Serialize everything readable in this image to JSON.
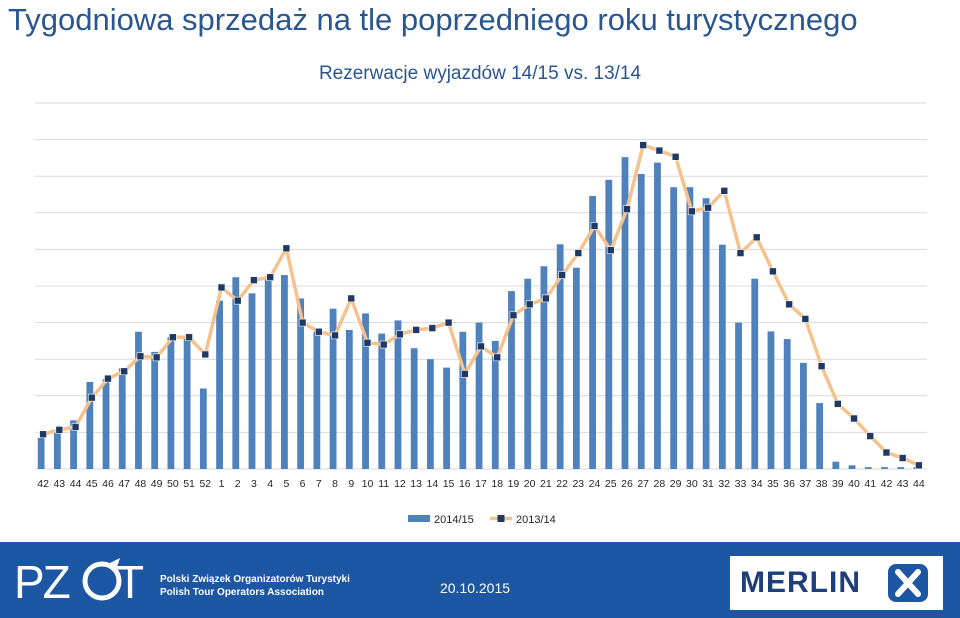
{
  "header": {
    "title": "Tygodniowa sprzedaż na tle poprzedniego roku turystycznego"
  },
  "chart_data": {
    "type": "bar",
    "title": "Rezerwacje wyjazdów 14/15 vs. 13/14",
    "xlabel": "",
    "ylabel": "",
    "grid": true,
    "legend_position": "bottom",
    "categories": [
      "42",
      "43",
      "44",
      "45",
      "46",
      "47",
      "48",
      "49",
      "50",
      "51",
      "52",
      "1",
      "2",
      "3",
      "4",
      "5",
      "6",
      "7",
      "8",
      "9",
      "10",
      "11",
      "12",
      "13",
      "14",
      "15",
      "16",
      "17",
      "18",
      "19",
      "20",
      "21",
      "22",
      "23",
      "24",
      "25",
      "26",
      "27",
      "28",
      "29",
      "30",
      "31",
      "32",
      "33",
      "34",
      "35",
      "36",
      "37",
      "38",
      "39",
      "40",
      "41",
      "42",
      "43",
      "44"
    ],
    "ylim": [
      0,
      10
    ],
    "series": [
      {
        "name": "2014/15",
        "type": "bar",
        "color": "#4f81bd",
        "values": [
          0.85,
          1.0,
          1.33,
          2.38,
          2.45,
          2.75,
          3.75,
          3.2,
          3.6,
          3.6,
          2.2,
          4.6,
          5.24,
          4.8,
          5.27,
          5.3,
          4.66,
          3.75,
          4.38,
          3.8,
          4.25,
          3.7,
          4.06,
          3.3,
          3.0,
          2.77,
          3.75,
          4.0,
          3.5,
          4.86,
          5.2,
          5.54,
          6.14,
          5.5,
          7.46,
          7.9,
          8.52,
          8.06,
          8.37,
          7.7,
          7.7,
          7.4,
          6.13,
          4.0,
          5.2,
          3.76,
          3.55,
          2.9,
          1.8,
          0.2,
          0.1,
          0.05,
          0.05,
          0.05,
          0.05
        ]
      },
      {
        "name": "2013/14",
        "type": "line",
        "color": "#f5c28e",
        "marker_color": "#1f3864",
        "values": [
          0.95,
          1.07,
          1.15,
          1.95,
          2.47,
          2.67,
          3.08,
          3.05,
          3.6,
          3.6,
          3.13,
          4.96,
          4.6,
          5.16,
          5.24,
          6.03,
          4.0,
          3.75,
          3.65,
          4.66,
          3.45,
          3.4,
          3.68,
          3.8,
          3.85,
          4.0,
          2.6,
          3.35,
          3.05,
          4.2,
          4.5,
          4.66,
          5.3,
          5.9,
          6.64,
          5.98,
          7.1,
          8.85,
          8.7,
          8.53,
          7.04,
          7.14,
          7.6,
          5.9,
          6.33,
          5.4,
          4.5,
          4.1,
          2.81,
          1.78,
          1.38,
          0.9,
          0.45,
          0.3,
          0.1
        ]
      }
    ]
  },
  "footer": {
    "org_name_pl": "Polski Związek Organizatorów Turystyki",
    "org_name_en": "Polish Tour Operators Association",
    "date": "20.10.2015",
    "logo_left": "PZOT",
    "logo_right": "MERLIN",
    "colors": {
      "band": "#1d56a3",
      "text": "#ffffff"
    }
  }
}
